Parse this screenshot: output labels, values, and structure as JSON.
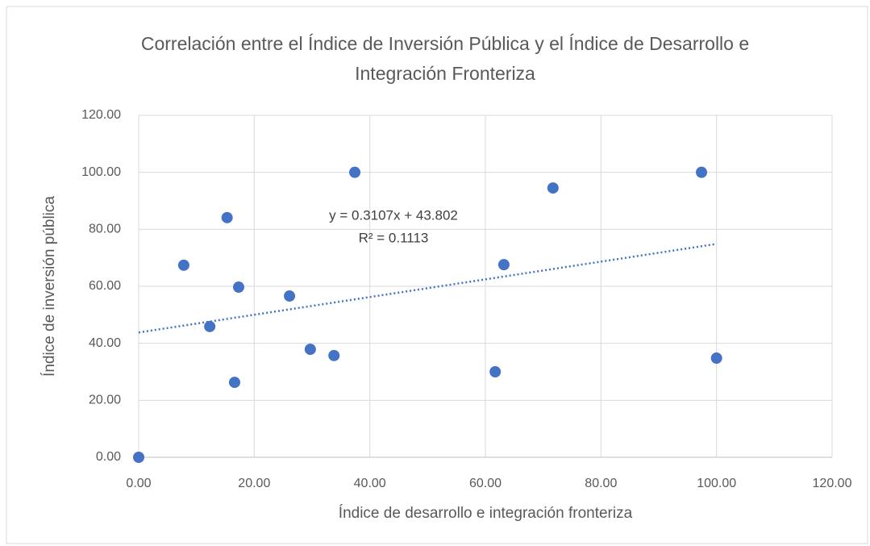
{
  "chart_data": {
    "type": "scatter",
    "title": "Correlación entre el Índice de Inversión Pública y el Índice de Desarrollo e Integración Fronteriza",
    "x_label": "Índice de desarrollo e integración fronteriza",
    "y_label": "Índice de inversión pública",
    "x": [
      0,
      7.8,
      12.3,
      15.3,
      16.6,
      17.3,
      26.1,
      29.7,
      33.8,
      37.4,
      61.7,
      63.2,
      71.7,
      97.4,
      100
    ],
    "values": [
      0,
      67.4,
      45.9,
      84.1,
      26.3,
      59.7,
      56.6,
      37.9,
      35.7,
      100,
      30.0,
      67.6,
      94.5,
      100,
      34.8
    ],
    "color": "#4472c4",
    "xlim": [
      0,
      120
    ],
    "ylim": [
      0,
      120
    ],
    "xticks": [
      {
        "value": 0,
        "label": "0.00"
      },
      {
        "value": 20,
        "label": "20.00"
      },
      {
        "value": 40,
        "label": "40.00"
      },
      {
        "value": 60,
        "label": "60.00"
      },
      {
        "value": 80,
        "label": "80.00"
      },
      {
        "value": 100,
        "label": "100.00"
      },
      {
        "value": 120,
        "label": "120.00"
      }
    ],
    "yticks": [
      {
        "value": 0,
        "label": "0.00"
      },
      {
        "value": 20,
        "label": "20.00"
      },
      {
        "value": 40,
        "label": "40.00"
      },
      {
        "value": 60,
        "label": "60.00"
      },
      {
        "value": 80,
        "label": "80.00"
      },
      {
        "value": 100,
        "label": "100.00"
      },
      {
        "value": 120,
        "label": "120.00"
      }
    ],
    "grid": true,
    "trendline": {
      "slope": 0.3107,
      "intercept": 43.802,
      "equation": "y = 0.3107x + 43.802",
      "r2": "R² = 0.1113"
    }
  }
}
